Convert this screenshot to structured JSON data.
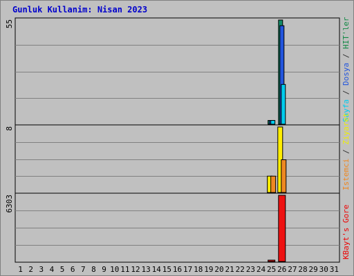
{
  "title": "Gunluk Kullanim: Nisan 2023",
  "chart_data": {
    "type": "bar",
    "title": "Gunluk Kullanim: Nisan 2023",
    "categories": [
      "1",
      "2",
      "3",
      "4",
      "5",
      "6",
      "7",
      "8",
      "9",
      "10",
      "11",
      "12",
      "13",
      "14",
      "15",
      "16",
      "17",
      "18",
      "19",
      "20",
      "21",
      "22",
      "23",
      "24",
      "25",
      "26",
      "27",
      "28",
      "29",
      "30",
      "31"
    ],
    "weekend_days": [
      "1",
      "2",
      "8",
      "9",
      "15",
      "16",
      "22",
      "23",
      "29",
      "30"
    ],
    "panels": [
      {
        "name": "top",
        "max_label": "55",
        "ylim": [
          0,
          55
        ],
        "legend_parts": [
          {
            "text": "Sayfa",
            "color": "#00ccee"
          },
          {
            "text": " / ",
            "color": "#333333"
          },
          {
            "text": "Dosya",
            "color": "#2255dd"
          },
          {
            "text": " / ",
            "color": "#333333"
          },
          {
            "text": "HIT'ler",
            "color": "#118844"
          }
        ],
        "series": [
          {
            "name": "HIT'ler",
            "color": "#118866",
            "values": [
              0,
              0,
              0,
              0,
              0,
              0,
              0,
              0,
              0,
              0,
              0,
              0,
              0,
              0,
              0,
              0,
              0,
              0,
              0,
              0,
              0,
              0,
              0,
              0,
              2,
              55,
              0,
              0,
              0,
              0,
              0
            ]
          },
          {
            "name": "Dosya",
            "color": "#2255dd",
            "values": [
              0,
              0,
              0,
              0,
              0,
              0,
              0,
              0,
              0,
              0,
              0,
              0,
              0,
              0,
              0,
              0,
              0,
              0,
              0,
              0,
              0,
              0,
              0,
              0,
              2,
              52,
              0,
              0,
              0,
              0,
              0
            ]
          },
          {
            "name": "Sayfa",
            "color": "#00ccee",
            "values": [
              0,
              0,
              0,
              0,
              0,
              0,
              0,
              0,
              0,
              0,
              0,
              0,
              0,
              0,
              0,
              0,
              0,
              0,
              0,
              0,
              0,
              0,
              0,
              0,
              2,
              21,
              0,
              0,
              0,
              0,
              0
            ]
          }
        ]
      },
      {
        "name": "middle",
        "max_label": "8",
        "ylim": [
          0,
          8
        ],
        "legend_parts": [
          {
            "text": "Istemci",
            "color": "#ee8822"
          },
          {
            "text": " / ",
            "color": "#333333"
          },
          {
            "text": "Ziyaret",
            "color": "#eeee00"
          }
        ],
        "series": [
          {
            "name": "Ziyaret",
            "color": "#ffee00",
            "values": [
              0,
              0,
              0,
              0,
              0,
              0,
              0,
              0,
              0,
              0,
              0,
              0,
              0,
              0,
              0,
              0,
              0,
              0,
              0,
              0,
              0,
              0,
              0,
              0,
              2,
              8,
              0,
              0,
              0,
              0,
              0
            ]
          },
          {
            "name": "Istemci",
            "color": "#ee8822",
            "values": [
              0,
              0,
              0,
              0,
              0,
              0,
              0,
              0,
              0,
              0,
              0,
              0,
              0,
              0,
              0,
              0,
              0,
              0,
              0,
              0,
              0,
              0,
              0,
              0,
              2,
              4,
              0,
              0,
              0,
              0,
              0
            ]
          }
        ]
      },
      {
        "name": "bottom",
        "max_label": "6303",
        "ylim": [
          0,
          6303
        ],
        "legend_parts": [
          {
            "text": "KBayt's Gore",
            "color": "#ee0000"
          }
        ],
        "series": [
          {
            "name": "KBayt's Gore",
            "color": "#ee1111",
            "values": [
              0,
              0,
              0,
              0,
              0,
              0,
              0,
              0,
              0,
              0,
              0,
              0,
              0,
              0,
              0,
              0,
              0,
              0,
              0,
              0,
              0,
              0,
              0,
              0,
              20,
              6303,
              0,
              0,
              0,
              0,
              0
            ]
          }
        ]
      }
    ]
  },
  "colors": {
    "background": "#c0c0c0",
    "plot": "#c0c0c0",
    "grid": "#808080",
    "title": "#0000cc",
    "weekend_label": "#118844",
    "weekday_label": "#000000"
  }
}
